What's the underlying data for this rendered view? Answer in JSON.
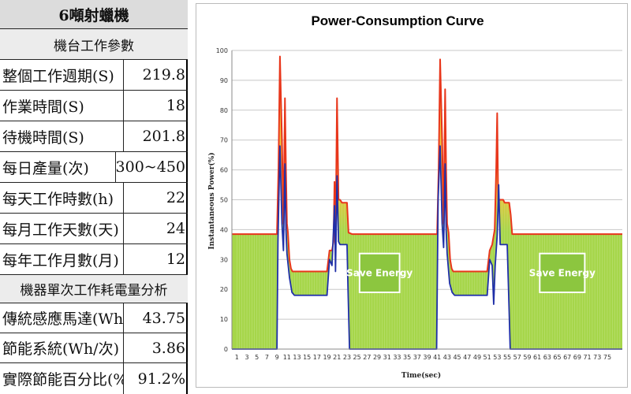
{
  "table": {
    "header": "6噸射蠟機",
    "section1_title": "機台工作參數",
    "params": [
      {
        "label": "整個工作週期(S)",
        "value": "219.8"
      },
      {
        "label": "作業時間(S)",
        "value": "18"
      },
      {
        "label": "待機時間(S)",
        "value": "201.8"
      },
      {
        "label": "每日產量(次)",
        "value": "300~450"
      },
      {
        "label": "每天工作時數(h)",
        "value": "22"
      },
      {
        "label": "每月工作天數(天)",
        "value": "24"
      },
      {
        "label": "每年工作月數(月)",
        "value": "12"
      }
    ],
    "section2_title": "機器單次工作耗電量分析",
    "analysis": [
      {
        "label": "傳統感應馬達(Wh/次)",
        "value": "43.75"
      },
      {
        "label": "節能系統(Wh/次)",
        "value": "3.86"
      },
      {
        "label": "實際節能百分比(%)",
        "value": "91.2%"
      }
    ]
  },
  "colors": {
    "traditional_line": "#e8361b",
    "energy_saving_line": "#1f2fa8",
    "saved_area": "#a6d64a",
    "saved_area_peak": "#f2c23b",
    "save_label_bg": "#8cc63f",
    "grid": "#c8c8c8"
  },
  "chart_data": {
    "type": "line",
    "title": "Power-Consumption Curve",
    "xlabel": "Time(sec)",
    "ylabel": "Instantaneous Power(%)",
    "ylim": [
      0,
      100
    ],
    "y_ticks": [
      0,
      10,
      20,
      30,
      40,
      50,
      60,
      70,
      80,
      90,
      100
    ],
    "xlim": [
      0,
      78
    ],
    "x_ticks": [
      1,
      3,
      5,
      7,
      9,
      11,
      13,
      15,
      17,
      19,
      21,
      23,
      25,
      27,
      29,
      31,
      33,
      35,
      37,
      39,
      41,
      43,
      45,
      47,
      49,
      51,
      53,
      55,
      57,
      59,
      61,
      63,
      65,
      67,
      69,
      71,
      73,
      75
    ],
    "grid": "horizontal",
    "annotations": [
      "Save Energy",
      "Save Energy"
    ],
    "series": [
      {
        "role": "traditional",
        "x": [
          0,
          9,
          9.3,
          9.6,
          10,
          10.3,
          10.6,
          10.8,
          11,
          11.2,
          11.5,
          11.8,
          12.1,
          12.5,
          13,
          17,
          19,
          19.5,
          20,
          20.3,
          20.5,
          20.7,
          21,
          21.3,
          21.6,
          22,
          22.3,
          23,
          23.3,
          24,
          40,
          41,
          41.3,
          41.6,
          42,
          42.3,
          42.6,
          42.8,
          43,
          43.3,
          43.6,
          43.9,
          44.2,
          44.6,
          45,
          49,
          51,
          51.5,
          52,
          52.5,
          52.8,
          53,
          53.2,
          53.6,
          54.2,
          54.5,
          55.4,
          55.7,
          56,
          78
        ],
        "y": [
          38.5,
          38.5,
          60,
          98,
          70,
          42,
          84,
          60,
          42,
          39,
          30,
          27,
          26,
          26,
          26,
          26,
          26,
          33,
          33,
          36,
          56,
          34,
          84,
          50,
          50,
          49,
          49,
          49,
          39,
          38.5,
          38.5,
          38.5,
          60,
          97,
          70,
          42,
          87,
          60,
          42,
          39,
          30,
          27,
          26,
          26,
          26,
          26,
          26,
          33,
          35,
          40,
          60,
          79,
          50,
          50,
          50,
          49,
          49,
          45,
          38.5,
          38.5
        ]
      },
      {
        "role": "energy_saving",
        "x": [
          0,
          9,
          9.2,
          9.6,
          10,
          10.3,
          10.6,
          10.8,
          11,
          11.5,
          12,
          12.5,
          17,
          19,
          19.5,
          20,
          20.5,
          20.7,
          21,
          21.3,
          21.6,
          22.5,
          23,
          23.2,
          23.5,
          40.9,
          41.2,
          41.6,
          42,
          42.3,
          42.6,
          42.8,
          43,
          43.5,
          44,
          44.5,
          49,
          51,
          51.5,
          52,
          52.3,
          52.6,
          53,
          53.3,
          53.6,
          54.5,
          55,
          55.3,
          55.6,
          78
        ],
        "y": [
          0,
          0,
          36,
          68,
          42,
          33,
          62,
          40,
          32,
          24,
          19,
          18,
          18,
          18,
          30,
          28,
          48,
          26,
          58,
          36,
          35,
          35,
          35,
          20,
          0,
          0,
          50,
          68,
          42,
          34,
          62,
          40,
          32,
          22,
          19,
          18,
          18,
          18,
          30,
          28,
          15,
          28,
          38,
          55,
          35,
          35,
          35,
          18,
          0,
          0
        ]
      }
    ]
  }
}
